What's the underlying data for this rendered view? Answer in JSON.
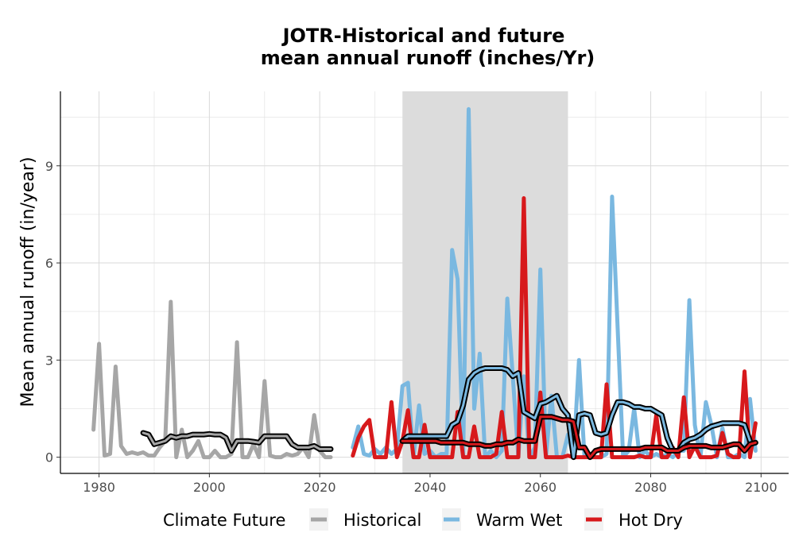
{
  "chart_data": {
    "type": "line",
    "title_line1": "JOTR-Historical and future",
    "title_line2": "mean annual runoff (inches/Yr)",
    "xlabel": "",
    "ylabel": "Mean annual runoff (in/year)",
    "xlim": [
      1973,
      2105
    ],
    "ylim": [
      -0.5,
      11.3
    ],
    "x_ticks": [
      1980,
      2000,
      2020,
      2040,
      2060,
      2080,
      2100
    ],
    "y_ticks": [
      0,
      3,
      6,
      9
    ],
    "grid": true,
    "shaded_period": [
      2035,
      2065
    ],
    "legend": {
      "title": "Climate Future",
      "position": "bottom",
      "entries": [
        "Historical",
        "Warm Wet",
        "Hot Dry"
      ]
    },
    "colors": {
      "Historical": "#a6a6a6",
      "Warm Wet": "#7ab8e0",
      "Hot Dry": "#d7191c",
      "rolling_mean": "#000000",
      "shade": "#dcdcdc"
    },
    "series": [
      {
        "name": "Historical",
        "x": [
          1979,
          1980,
          1981,
          1982,
          1983,
          1984,
          1985,
          1986,
          1987,
          1988,
          1989,
          1990,
          1991,
          1992,
          1993,
          1994,
          1995,
          1996,
          1997,
          1998,
          1999,
          2000,
          2001,
          2002,
          2003,
          2004,
          2005,
          2006,
          2007,
          2008,
          2009,
          2010,
          2011,
          2012,
          2013,
          2014,
          2015,
          2016,
          2017,
          2018,
          2019,
          2020,
          2021,
          2022
        ],
        "values": [
          0.85,
          3.5,
          0.05,
          0.1,
          2.8,
          0.35,
          0.1,
          0.15,
          0.1,
          0.15,
          0.05,
          0.05,
          0.3,
          0.5,
          4.8,
          0.0,
          0.85,
          0.0,
          0.2,
          0.5,
          0.0,
          0.0,
          0.2,
          0.0,
          0.0,
          0.1,
          3.55,
          0.0,
          0.0,
          0.4,
          0.0,
          2.35,
          0.05,
          0.0,
          0.0,
          0.1,
          0.05,
          0.1,
          0.3,
          0.0,
          1.3,
          0.2,
          0.0,
          0.0
        ],
        "rolling_mean_x": [
          1988,
          1989,
          1990,
          1991,
          1992,
          1993,
          1994,
          1995,
          1996,
          1997,
          1998,
          1999,
          2000,
          2001,
          2002,
          2003,
          2004,
          2005,
          2006,
          2007,
          2008,
          2009,
          2010,
          2011,
          2012,
          2013,
          2014,
          2015,
          2016,
          2017,
          2018,
          2019,
          2020,
          2021,
          2022
        ],
        "rolling_mean": [
          0.75,
          0.7,
          0.4,
          0.45,
          0.5,
          0.65,
          0.6,
          0.65,
          0.65,
          0.7,
          0.7,
          0.7,
          0.72,
          0.7,
          0.7,
          0.6,
          0.2,
          0.5,
          0.5,
          0.5,
          0.48,
          0.45,
          0.65,
          0.65,
          0.65,
          0.65,
          0.65,
          0.4,
          0.3,
          0.3,
          0.3,
          0.35,
          0.25,
          0.25,
          0.25
        ]
      },
      {
        "name": "Warm Wet",
        "x": [
          2026,
          2027,
          2028,
          2029,
          2030,
          2031,
          2032,
          2033,
          2034,
          2035,
          2036,
          2037,
          2038,
          2039,
          2040,
          2041,
          2042,
          2043,
          2044,
          2045,
          2046,
          2047,
          2048,
          2049,
          2050,
          2051,
          2052,
          2053,
          2054,
          2055,
          2056,
          2057,
          2058,
          2059,
          2060,
          2061,
          2062,
          2063,
          2064,
          2065,
          2066,
          2067,
          2068,
          2069,
          2070,
          2071,
          2072,
          2073,
          2074,
          2075,
          2076,
          2077,
          2078,
          2079,
          2080,
          2081,
          2082,
          2083,
          2084,
          2085,
          2086,
          2087,
          2088,
          2089,
          2090,
          2091,
          2092,
          2093,
          2094,
          2095,
          2096,
          2097,
          2098,
          2099
        ],
        "values": [
          0.3,
          0.95,
          0.1,
          0.05,
          0.25,
          0.1,
          0.3,
          0.1,
          0.25,
          2.2,
          2.3,
          0.0,
          1.6,
          0.1,
          0.2,
          0.0,
          0.1,
          0.1,
          6.4,
          5.5,
          0.0,
          10.75,
          1.5,
          3.2,
          0.0,
          0.2,
          0.0,
          0.2,
          4.9,
          2.5,
          0.0,
          2.5,
          0.0,
          0.3,
          5.8,
          0.0,
          1.9,
          0.0,
          0.0,
          0.7,
          0.0,
          3.0,
          0.0,
          0.1,
          0.0,
          0.0,
          0.1,
          8.05,
          4.0,
          0.0,
          0.2,
          1.5,
          0.0,
          0.2,
          0.0,
          0.1,
          0.0,
          0.1,
          0.0,
          0.2,
          0.2,
          4.85,
          1.0,
          0.0,
          1.7,
          1.0,
          0.0,
          0.9,
          0.0,
          0.0,
          0.1,
          0.0,
          1.8,
          0.2
        ],
        "rolling_mean_x": [
          2035,
          2036,
          2037,
          2038,
          2039,
          2040,
          2041,
          2042,
          2043,
          2044,
          2045,
          2046,
          2047,
          2048,
          2049,
          2050,
          2051,
          2052,
          2053,
          2054,
          2055,
          2056,
          2057,
          2058,
          2059,
          2060,
          2061,
          2062,
          2063,
          2064,
          2065,
          2066,
          2067,
          2068,
          2069,
          2070,
          2071,
          2072,
          2073,
          2074,
          2075,
          2076,
          2077,
          2078,
          2079,
          2080,
          2081,
          2082,
          2083,
          2084,
          2085,
          2086,
          2087,
          2088,
          2089,
          2090,
          2091,
          2092,
          2093,
          2094,
          2095,
          2096,
          2097,
          2098
        ],
        "rolling_mean": [
          0.5,
          0.65,
          0.65,
          0.65,
          0.65,
          0.65,
          0.65,
          0.65,
          0.65,
          1.0,
          1.1,
          1.6,
          2.4,
          2.6,
          2.7,
          2.75,
          2.75,
          2.75,
          2.75,
          2.7,
          2.5,
          2.6,
          1.4,
          1.3,
          1.2,
          1.65,
          1.7,
          1.8,
          1.9,
          1.5,
          1.3,
          0.0,
          1.3,
          1.35,
          1.3,
          0.75,
          0.7,
          0.75,
          1.3,
          1.7,
          1.7,
          1.65,
          1.55,
          1.55,
          1.5,
          1.5,
          1.4,
          1.3,
          0.6,
          0.2,
          0.2,
          0.45,
          0.55,
          0.6,
          0.7,
          0.85,
          0.95,
          1.0,
          1.05,
          1.05,
          1.05,
          1.05,
          1.0,
          0.5
        ]
      },
      {
        "name": "Hot Dry",
        "x": [
          2026,
          2027,
          2028,
          2029,
          2030,
          2031,
          2032,
          2033,
          2034,
          2035,
          2036,
          2037,
          2038,
          2039,
          2040,
          2041,
          2042,
          2043,
          2044,
          2045,
          2046,
          2047,
          2048,
          2049,
          2050,
          2051,
          2052,
          2053,
          2054,
          2055,
          2056,
          2057,
          2058,
          2059,
          2060,
          2061,
          2062,
          2063,
          2064,
          2065,
          2066,
          2067,
          2068,
          2069,
          2070,
          2071,
          2072,
          2073,
          2074,
          2075,
          2076,
          2077,
          2078,
          2079,
          2080,
          2081,
          2082,
          2083,
          2084,
          2085,
          2086,
          2087,
          2088,
          2089,
          2090,
          2091,
          2092,
          2093,
          2094,
          2095,
          2096,
          2097,
          2098,
          2099
        ],
        "values": [
          0.05,
          0.6,
          0.95,
          1.15,
          0.0,
          0.0,
          0.0,
          1.7,
          0.0,
          0.5,
          1.45,
          0.0,
          0.0,
          1.0,
          0.0,
          0.0,
          0.0,
          0.0,
          0.0,
          1.4,
          0.0,
          0.0,
          0.95,
          0.0,
          0.0,
          0.0,
          0.1,
          1.4,
          0.0,
          0.0,
          0.0,
          8.0,
          0.0,
          0.0,
          2.0,
          0.0,
          0.0,
          0.0,
          0.0,
          0.05,
          0.0,
          0.0,
          0.0,
          0.0,
          0.0,
          0.0,
          2.25,
          0.0,
          0.0,
          0.0,
          0.0,
          0.0,
          0.05,
          0.0,
          0.0,
          1.3,
          0.0,
          0.0,
          0.3,
          0.0,
          1.85,
          0.0,
          0.35,
          0.0,
          0.0,
          0.0,
          0.05,
          0.75,
          0.1,
          0.0,
          0.0,
          2.65,
          0.0,
          1.05
        ],
        "rolling_mean_x": [
          2035,
          2036,
          2037,
          2038,
          2039,
          2040,
          2041,
          2042,
          2043,
          2044,
          2045,
          2046,
          2047,
          2048,
          2049,
          2050,
          2051,
          2052,
          2053,
          2054,
          2055,
          2056,
          2057,
          2058,
          2059,
          2060,
          2061,
          2062,
          2063,
          2064,
          2065,
          2066,
          2067,
          2068,
          2069,
          2070,
          2071,
          2072,
          2073,
          2074,
          2075,
          2076,
          2077,
          2078,
          2079,
          2080,
          2081,
          2082,
          2083,
          2084,
          2085,
          2086,
          2087,
          2088,
          2089,
          2090,
          2091,
          2092,
          2093,
          2094,
          2095,
          2096,
          2097,
          2098,
          2099
        ],
        "rolling_mean": [
          0.5,
          0.5,
          0.5,
          0.5,
          0.5,
          0.5,
          0.5,
          0.45,
          0.45,
          0.45,
          0.45,
          0.45,
          0.4,
          0.4,
          0.4,
          0.35,
          0.35,
          0.4,
          0.4,
          0.45,
          0.45,
          0.55,
          0.5,
          0.5,
          0.5,
          1.25,
          1.25,
          1.25,
          1.2,
          1.15,
          1.15,
          1.1,
          0.3,
          0.3,
          0.0,
          0.2,
          0.25,
          0.25,
          0.25,
          0.25,
          0.25,
          0.25,
          0.25,
          0.25,
          0.3,
          0.3,
          0.3,
          0.3,
          0.2,
          0.2,
          0.2,
          0.3,
          0.35,
          0.35,
          0.35,
          0.35,
          0.3,
          0.3,
          0.3,
          0.35,
          0.4,
          0.4,
          0.2,
          0.4,
          0.45
        ]
      }
    ]
  }
}
